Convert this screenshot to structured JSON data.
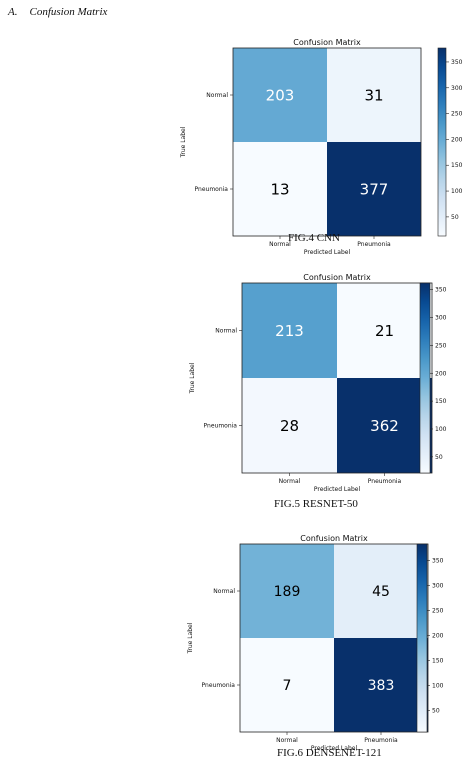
{
  "section": {
    "number": "A.",
    "title": "Confusion Matrix"
  },
  "figures": [
    {
      "caption": "FIG.4 CNN"
    },
    {
      "caption": "FIG.5 RESNET-50"
    },
    {
      "caption": "FIG.6 DENSENET-121"
    }
  ],
  "chart_data": [
    {
      "type": "heatmap",
      "title": "Confusion Matrix",
      "xlabel": "Predicted Label",
      "ylabel": "True Label",
      "x_categories": [
        "Normal",
        "Pneumonia"
      ],
      "y_categories": [
        "Normal",
        "Pneumonia"
      ],
      "values": [
        [
          203,
          31
        ],
        [
          13,
          377
        ]
      ],
      "colorbar_ticks": [
        50,
        100,
        150,
        200,
        250,
        300,
        350
      ],
      "colorbar_range": [
        13,
        377
      ],
      "colormap": "Blues",
      "low_color": "#f7fbff",
      "high_color": "#08306b"
    },
    {
      "type": "heatmap",
      "title": "Confusion Matrix",
      "xlabel": "Predicted Label",
      "ylabel": "True Label",
      "x_categories": [
        "Normal",
        "Pneumonia"
      ],
      "y_categories": [
        "Normal",
        "Pneumonia"
      ],
      "values": [
        [
          213,
          21
        ],
        [
          28,
          362
        ]
      ],
      "colorbar_ticks": [
        50,
        100,
        150,
        200,
        250,
        300,
        350
      ],
      "colorbar_range": [
        21,
        362
      ],
      "colormap": "Blues",
      "low_color": "#f7fbff",
      "high_color": "#08306b"
    },
    {
      "type": "heatmap",
      "title": "Confusion Matrix",
      "xlabel": "Predicted Label",
      "ylabel": "True Label",
      "x_categories": [
        "Normal",
        "Pneumonia"
      ],
      "y_categories": [
        "Normal",
        "Pneumonia"
      ],
      "values": [
        [
          189,
          45
        ],
        [
          7,
          383
        ]
      ],
      "colorbar_ticks": [
        50,
        100,
        150,
        200,
        250,
        300,
        350
      ],
      "colorbar_range": [
        7,
        383
      ],
      "colormap": "Blues",
      "low_color": "#f7fbff",
      "high_color": "#08306b"
    }
  ]
}
